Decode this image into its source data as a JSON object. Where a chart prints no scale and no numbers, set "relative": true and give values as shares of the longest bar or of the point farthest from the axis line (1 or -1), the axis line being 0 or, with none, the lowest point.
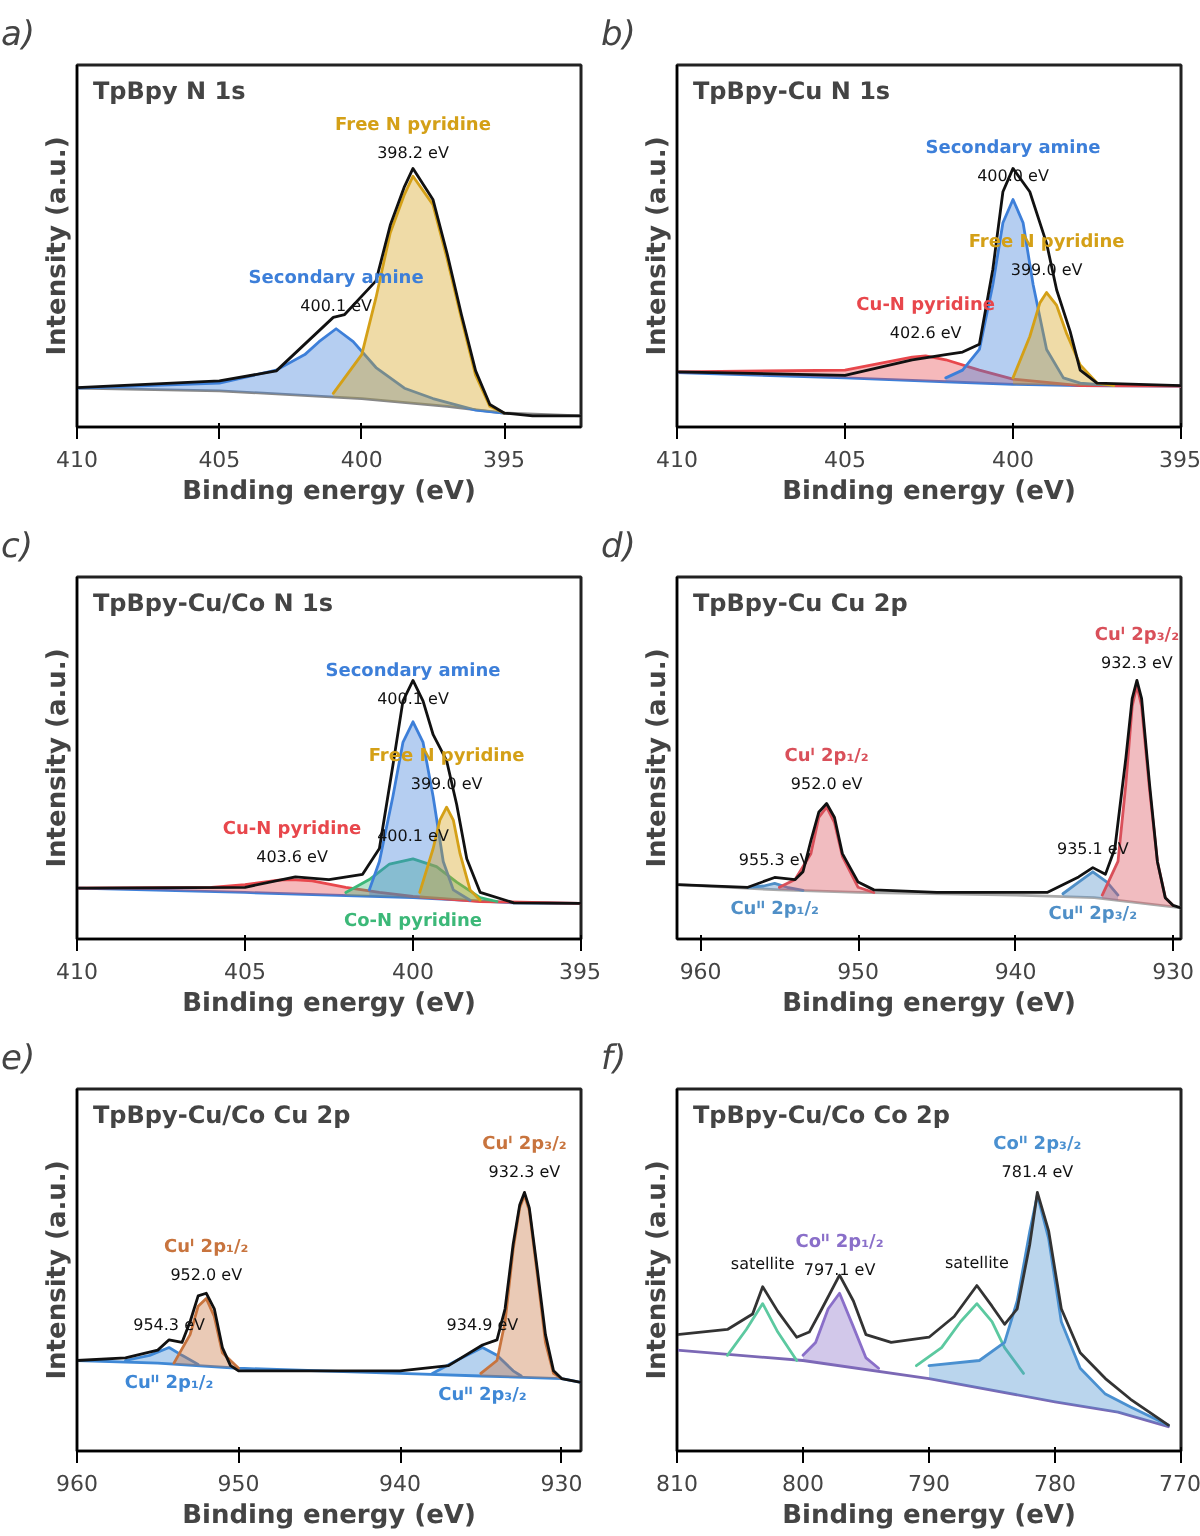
{
  "chart_data": [
    {
      "type": "line",
      "relative": true,
      "title": "a)",
      "subtitle": "TpBpy N 1s",
      "xlabel": "Binding energy (eV)",
      "ylabel": "Intensity (a.u.)",
      "xlim": [
        410,
        392.3
      ],
      "xticks": [
        410,
        405,
        400,
        395
      ],
      "series": [
        {
          "color": "#888888",
          "x": [
            410,
            405,
            400,
            397,
            395,
            392.3
          ],
          "values": [
            0.15,
            0.14,
            0.11,
            0.08,
            0.054,
            0.043
          ]
        },
        {
          "name": "Secondary amine",
          "type": "area",
          "color": "#3d7fd9",
          "x": [
            410,
            405,
            403,
            402,
            401.5,
            400.9,
            400.3,
            399.5,
            398.5,
            397.5,
            396,
            395
          ],
          "values": [
            0.15,
            0.17,
            0.22,
            0.28,
            0.33,
            0.38,
            0.33,
            0.23,
            0.15,
            0.11,
            0.065,
            0.054
          ]
        },
        {
          "name": "Free N pyridine",
          "type": "area",
          "color": "#d4a017",
          "x": [
            401,
            400,
            399.5,
            399,
            398.5,
            398.2,
            397.5,
            397,
            396.5,
            396,
            395.5,
            395
          ],
          "values": [
            0.13,
            0.28,
            0.5,
            0.75,
            0.9,
            0.97,
            0.86,
            0.65,
            0.42,
            0.2,
            0.08,
            0.054
          ]
        },
        {
          "color": "#111111",
          "x": [
            410,
            405,
            403,
            401,
            400.6,
            399.5,
            399,
            398.5,
            398.2,
            397.5,
            397,
            396.5,
            396,
            395.5,
            395,
            394,
            392.3
          ],
          "values": [
            0.152,
            0.178,
            0.217,
            0.424,
            0.435,
            0.565,
            0.78,
            0.93,
            1.0,
            0.88,
            0.67,
            0.435,
            0.217,
            0.087,
            0.054,
            0.043,
            0.043
          ]
        }
      ],
      "annotations": [
        {
          "text": "400.1 eV",
          "x": 400.9,
          "y": 0.38
        },
        {
          "text": "398.2 eV",
          "x": 398.2,
          "y": 0.97
        }
      ]
    },
    {
      "type": "line",
      "relative": true,
      "title": "b)",
      "subtitle": "TpBpy-Cu N 1s",
      "xlabel": "Binding energy (eV)",
      "ylabel": "Intensity (a.u.)",
      "xlim": [
        410,
        395
      ],
      "xticks": [
        410,
        405,
        400,
        395
      ],
      "series": [
        {
          "color": "#3d7fd9",
          "x": [
            410,
            405,
            402,
            400,
            398,
            395
          ],
          "values": [
            0.21,
            0.19,
            0.175,
            0.165,
            0.16,
            0.158
          ]
        },
        {
          "name": "Cu-N pyridine",
          "type": "area",
          "color": "#e8474c",
          "x": [
            410,
            405,
            404,
            403,
            402.6,
            402,
            401,
            400,
            398,
            395
          ],
          "values": [
            0.213,
            0.22,
            0.245,
            0.27,
            0.275,
            0.26,
            0.22,
            0.185,
            0.16,
            0.158
          ]
        },
        {
          "name": "Secondary amine",
          "type": "area",
          "color": "#3d7fd9",
          "x": [
            402,
            401.5,
            401,
            400.6,
            400.3,
            400,
            399.7,
            399.4,
            399,
            398.5,
            398,
            397
          ],
          "values": [
            0.19,
            0.22,
            0.3,
            0.55,
            0.79,
            0.88,
            0.79,
            0.55,
            0.3,
            0.19,
            0.17,
            0.16
          ]
        },
        {
          "name": "Free N pyridine",
          "type": "area",
          "color": "#d4a017",
          "x": [
            400,
            399.5,
            399.2,
            399,
            398.7,
            398.4,
            398,
            397.5,
            397
          ],
          "values": [
            0.19,
            0.35,
            0.48,
            0.52,
            0.47,
            0.36,
            0.24,
            0.17,
            0.16
          ]
        },
        {
          "color": "#111111",
          "x": [
            410,
            405,
            403,
            402,
            401.5,
            401,
            400.6,
            400.3,
            400,
            399.5,
            399,
            398.7,
            398.3,
            398,
            397.5,
            395
          ],
          "values": [
            0.213,
            0.2,
            0.26,
            0.28,
            0.29,
            0.32,
            0.61,
            0.91,
            1.0,
            0.91,
            0.71,
            0.53,
            0.37,
            0.22,
            0.17,
            0.16
          ]
        }
      ],
      "annotations": [
        {
          "text": "400.0 eV",
          "x": 400.0,
          "y": 0.88
        },
        {
          "text": "399.0 eV",
          "x": 399.0,
          "y": 0.52
        },
        {
          "text": "402.6 eV",
          "x": 402.6,
          "y": 0.275
        }
      ]
    },
    {
      "type": "line",
      "relative": true,
      "title": "c)",
      "subtitle": "TpBpy-Cu/Co N 1s",
      "xlabel": "Binding energy (eV)",
      "ylabel": "Intensity (a.u.)",
      "xlim": [
        410,
        395
      ],
      "xticks": [
        410,
        405,
        400,
        395
      ],
      "series": [
        {
          "color": "#3d7fd9",
          "x": [
            410,
            405,
            400,
            397,
            395
          ],
          "values": [
            0.197,
            0.18,
            0.16,
            0.14,
            0.138
          ]
        },
        {
          "name": "Cu-N pyridine",
          "type": "area",
          "color": "#e8474c",
          "x": [
            410,
            406,
            405,
            404,
            403.6,
            403,
            402,
            401,
            400,
            398,
            395
          ],
          "values": [
            0.197,
            0.2,
            0.21,
            0.228,
            0.23,
            0.225,
            0.2,
            0.18,
            0.165,
            0.145,
            0.138
          ]
        },
        {
          "name": "Co-N pyridine",
          "type": "area",
          "color": "#3cb878",
          "x": [
            402,
            401.3,
            400.7,
            400,
            399.3,
            398.7,
            398,
            397.5
          ],
          "values": [
            0.18,
            0.23,
            0.29,
            0.31,
            0.28,
            0.22,
            0.16,
            0.145
          ]
        },
        {
          "name": "Secondary amine",
          "type": "area",
          "color": "#3d7fd9",
          "x": [
            401.3,
            401,
            400.6,
            400.3,
            400,
            399.7,
            399.4,
            399.1,
            398.8,
            398.3
          ],
          "values": [
            0.19,
            0.3,
            0.55,
            0.76,
            0.84,
            0.76,
            0.55,
            0.3,
            0.19,
            0.15
          ]
        },
        {
          "name": "Free N pyridine",
          "type": "area",
          "color": "#d4a017",
          "x": [
            399.8,
            399.4,
            399.2,
            399,
            398.8,
            398.6,
            398.3,
            398
          ],
          "values": [
            0.18,
            0.35,
            0.46,
            0.51,
            0.46,
            0.33,
            0.19,
            0.15
          ]
        },
        {
          "color": "#111111",
          "x": [
            410,
            405,
            403.5,
            402.5,
            401.5,
            401,
            400.6,
            400.3,
            400,
            399.7,
            399.4,
            399,
            398.7,
            398.4,
            398,
            397,
            395
          ],
          "values": [
            0.197,
            0.2,
            0.24,
            0.23,
            0.25,
            0.35,
            0.67,
            0.92,
            1.0,
            0.92,
            0.79,
            0.69,
            0.52,
            0.31,
            0.18,
            0.14,
            0.138
          ]
        }
      ],
      "annotations": [
        {
          "text": "400.1 eV",
          "x": 400.0,
          "y": 0.84
        },
        {
          "text": "400.1 eV",
          "x": 400.0,
          "y": 0.31
        },
        {
          "text": "399.0 eV",
          "x": 399.0,
          "y": 0.51
        },
        {
          "text": "403.6 eV",
          "x": 403.6,
          "y": 0.23
        }
      ]
    },
    {
      "type": "line",
      "relative": true,
      "title": "d)",
      "subtitle": "TpBpy-Cu Cu 2p",
      "xlabel": "Binding energy (eV)",
      "ylabel": "Intensity (a.u.)",
      "xlim": [
        961.5,
        929.5
      ],
      "xticks": [
        960,
        950,
        940,
        930
      ],
      "series": [
        {
          "color": "#aaaaaa",
          "x": [
            961.5,
            955,
            950,
            940,
            935,
            930,
            929.5
          ],
          "values": [
            0.21,
            0.19,
            0.18,
            0.17,
            0.16,
            0.124,
            0.12
          ]
        },
        {
          "name": "Cuᴵᴵ 2p₁/₂",
          "type": "area",
          "color": "#4f8fc7",
          "x": [
            957,
            956,
            955.3,
            954.5,
            953.5
          ],
          "values": [
            0.2,
            0.205,
            0.215,
            0.2,
            0.188
          ]
        },
        {
          "name": "Cuᴵ 2p₁/₂",
          "type": "area",
          "color": "#d9505a",
          "x": [
            955,
            954,
            953,
            952.5,
            952,
            951.5,
            951,
            950,
            949
          ],
          "values": [
            0.2,
            0.23,
            0.33,
            0.47,
            0.51,
            0.45,
            0.32,
            0.2,
            0.18
          ]
        },
        {
          "name": "Cuᴵᴵ 2p₃/₂",
          "type": "area",
          "color": "#4f8fc7",
          "x": [
            937,
            936,
            935.1,
            934.2,
            933.5
          ],
          "values": [
            0.175,
            0.22,
            0.26,
            0.22,
            0.17
          ]
        },
        {
          "name": "Cuᴵ 2p₃/₂",
          "type": "area",
          "color": "#d9505a",
          "x": [
            934.5,
            933.5,
            933,
            932.6,
            932.3,
            932,
            931.5,
            931,
            930.5,
            930
          ],
          "values": [
            0.17,
            0.3,
            0.6,
            0.9,
            0.98,
            0.9,
            0.58,
            0.3,
            0.16,
            0.13
          ]
        },
        {
          "color": "#111111",
          "x": [
            961.5,
            957,
            955.3,
            954,
            953.5,
            953,
            952.5,
            952,
            951.5,
            951,
            950,
            949,
            945,
            938,
            936,
            935.1,
            934.3,
            933.7,
            933,
            932.6,
            932.3,
            932,
            931.5,
            931,
            930.5,
            930,
            929.5
          ],
          "values": [
            0.21,
            0.2,
            0.238,
            0.23,
            0.26,
            0.38,
            0.49,
            0.524,
            0.47,
            0.33,
            0.22,
            0.19,
            0.18,
            0.18,
            0.24,
            0.276,
            0.25,
            0.35,
            0.7,
            0.93,
            1.0,
            0.93,
            0.6,
            0.3,
            0.16,
            0.13,
            0.12
          ]
        }
      ],
      "annotations": [
        {
          "text": "955.3 eV",
          "x": 955.3,
          "y": 0.215
        },
        {
          "text": "952.0 eV",
          "x": 952.0,
          "y": 0.51
        },
        {
          "text": "935.1 eV",
          "x": 935.1,
          "y": 0.26
        },
        {
          "text": "932.3 eV",
          "x": 932.3,
          "y": 0.98
        }
      ]
    },
    {
      "type": "line",
      "relative": true,
      "title": "e)",
      "subtitle": "TpBpy-Cu/Co Cu 2p",
      "xlabel": "Binding energy (eV)",
      "ylabel": "Intensity (a.u.)",
      "xlim": [
        960,
        928.8
      ],
      "xticks": [
        960,
        950,
        940,
        930
      ],
      "series": [
        {
          "color": "#3f88d6",
          "x": [
            960,
            955,
            950,
            940,
            935,
            930,
            928.8
          ],
          "values": [
            0.35,
            0.34,
            0.32,
            0.3,
            0.29,
            0.28,
            0.265
          ]
        },
        {
          "name": "Cuᴵᴵ 2p₁/₂",
          "type": "area",
          "color": "#3f88d6",
          "x": [
            957,
            955.5,
            954.3,
            953.5,
            952.5
          ],
          "values": [
            0.35,
            0.37,
            0.4,
            0.37,
            0.335
          ]
        },
        {
          "name": "Cuᴵ 2p₁/₂",
          "type": "area",
          "color": "#c8743e",
          "x": [
            954,
            953,
            952.5,
            952,
            951.5,
            951,
            950
          ],
          "values": [
            0.34,
            0.45,
            0.56,
            0.59,
            0.52,
            0.38,
            0.32
          ]
        },
        {
          "name": "Cuᴵᴵ 2p₃/₂",
          "type": "area",
          "color": "#3f88d6",
          "x": [
            938,
            936.5,
            934.9,
            934,
            933,
            932.5
          ],
          "values": [
            0.3,
            0.35,
            0.4,
            0.37,
            0.31,
            0.29
          ]
        },
        {
          "name": "Cuᴵ 2p₃/₂",
          "type": "area",
          "color": "#c8743e",
          "x": [
            935,
            934,
            933.5,
            933,
            932.6,
            932.3,
            932,
            931.5,
            931,
            930.5,
            930
          ],
          "values": [
            0.3,
            0.35,
            0.5,
            0.78,
            0.94,
            0.99,
            0.93,
            0.68,
            0.42,
            0.3,
            0.28
          ]
        },
        {
          "color": "#111111",
          "x": [
            960,
            957,
            955,
            954.3,
            953.5,
            953,
            952.5,
            952,
            951.5,
            951,
            950.5,
            950,
            945,
            940,
            937,
            934.9,
            934,
            933.5,
            933,
            932.6,
            932.3,
            932,
            931.5,
            931,
            930.5,
            930,
            928.8
          ],
          "values": [
            0.35,
            0.36,
            0.39,
            0.43,
            0.42,
            0.5,
            0.6,
            0.61,
            0.55,
            0.4,
            0.33,
            0.31,
            0.31,
            0.31,
            0.33,
            0.41,
            0.43,
            0.55,
            0.8,
            0.95,
            1.0,
            0.94,
            0.7,
            0.45,
            0.31,
            0.28,
            0.265
          ]
        }
      ],
      "annotations": [
        {
          "text": "954.3 eV",
          "x": 954.3,
          "y": 0.4
        },
        {
          "text": "952.0 eV",
          "x": 952.0,
          "y": 0.59
        },
        {
          "text": "934.9 eV",
          "x": 934.9,
          "y": 0.4
        },
        {
          "text": "932.3 eV",
          "x": 932.3,
          "y": 0.99
        }
      ]
    },
    {
      "type": "line",
      "relative": true,
      "title": "f)",
      "subtitle": "TpBpy-Cu/Co Co 2p",
      "xlabel": "Binding energy (eV)",
      "ylabel": "Intensity (a.u.)",
      "xlim": [
        810,
        770
      ],
      "xticks": [
        810,
        800,
        790,
        780,
        770
      ],
      "series": [
        {
          "color": "#7b68b5",
          "x": [
            810,
            800,
            790,
            780,
            775,
            771
          ],
          "values": [
            0.39,
            0.35,
            0.28,
            0.19,
            0.15,
            0.094
          ]
        },
        {
          "color": "#5cc9a0",
          "x": [
            806,
            804.5,
            803.2,
            802,
            800.5
          ],
          "values": [
            0.37,
            0.47,
            0.57,
            0.46,
            0.35
          ]
        },
        {
          "name": "Coᴵᴵ 2p₁/₂",
          "type": "area",
          "color": "#8a6fc9",
          "x": [
            800,
            799,
            798,
            797.1,
            796,
            795,
            794
          ],
          "values": [
            0.37,
            0.42,
            0.55,
            0.61,
            0.48,
            0.36,
            0.32
          ]
        },
        {
          "color": "#5cc9a0",
          "x": [
            791,
            789,
            787.5,
            786.2,
            785,
            784,
            782.5
          ],
          "values": [
            0.33,
            0.4,
            0.5,
            0.57,
            0.5,
            0.4,
            0.3
          ]
        },
        {
          "name": "Coᴵᴵ 2p₃/₂",
          "type": "area",
          "color": "#4a90d0",
          "x": [
            790,
            786,
            784,
            783,
            782,
            781.4,
            780.5,
            779.5,
            778,
            776,
            774,
            771
          ],
          "values": [
            0.33,
            0.35,
            0.42,
            0.58,
            0.85,
            0.99,
            0.82,
            0.5,
            0.32,
            0.22,
            0.17,
            0.1
          ]
        },
        {
          "color": "#333333",
          "x": [
            810,
            806,
            804,
            803.2,
            802,
            800.5,
            799.5,
            798.5,
            797.1,
            796,
            795,
            793,
            790,
            788,
            786.2,
            785,
            784,
            783,
            782,
            781.4,
            780.5,
            779.5,
            778,
            776,
            774,
            771
          ],
          "values": [
            0.45,
            0.47,
            0.53,
            0.635,
            0.54,
            0.44,
            0.46,
            0.55,
            0.68,
            0.58,
            0.45,
            0.42,
            0.44,
            0.52,
            0.64,
            0.56,
            0.49,
            0.55,
            0.8,
            1.0,
            0.85,
            0.55,
            0.38,
            0.28,
            0.2,
            0.1
          ]
        }
      ],
      "annotations": [
        {
          "text": "satellite",
          "x": 803.2,
          "y": 0.635
        },
        {
          "text": "797.1 eV",
          "x": 797.1,
          "y": 0.61
        },
        {
          "text": "satellite",
          "x": 786.2,
          "y": 0.64
        },
        {
          "text": "781.4 eV",
          "x": 781.4,
          "y": 0.99
        }
      ]
    }
  ]
}
